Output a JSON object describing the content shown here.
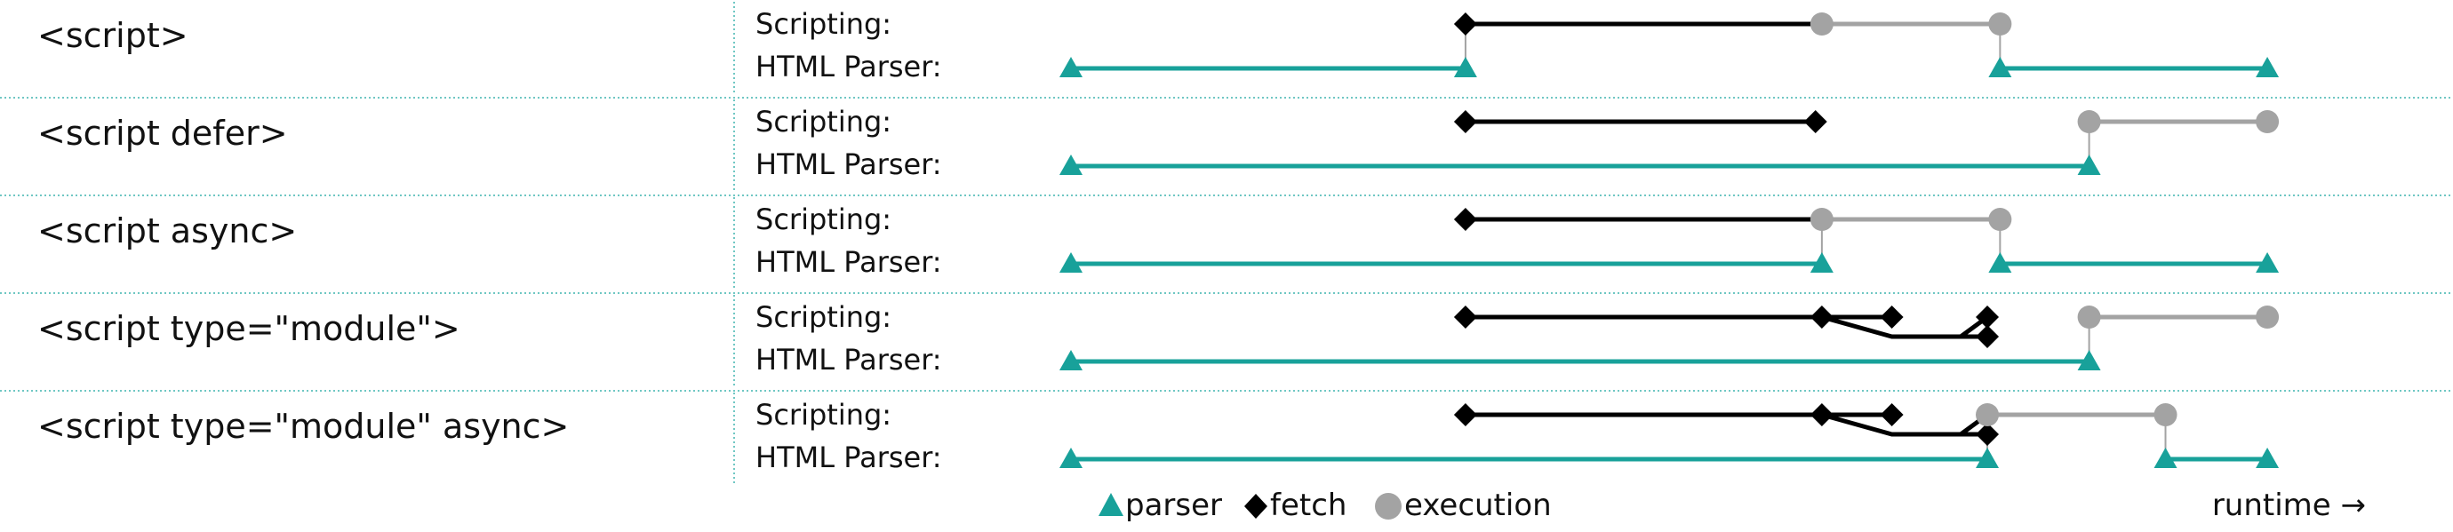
{
  "rows": [
    {
      "title": "<script>",
      "scripting_label": "Scripting:",
      "parser_label": "HTML Parser:",
      "fetch_segments": [
        [
          0.31,
          0.59
        ]
      ],
      "exec_segments": [
        [
          0.59,
          0.73
        ]
      ],
      "parser_segments": [
        [
          0.0,
          0.31
        ],
        [
          0.73,
          0.94
        ]
      ],
      "parser_points": [
        0.0,
        0.31,
        0.73,
        0.94
      ],
      "connectors": [
        0.31,
        0.73
      ],
      "fetch_points": [
        0.31,
        0.59
      ],
      "exec_points": [
        0.59,
        0.73
      ],
      "fetch_kinks": [],
      "extra_fetch_points": []
    },
    {
      "title": "<script defer>",
      "scripting_label": "Scripting:",
      "parser_label": "HTML Parser:",
      "fetch_segments": [
        [
          0.31,
          0.585
        ]
      ],
      "exec_segments": [
        [
          0.8,
          0.94
        ]
      ],
      "parser_segments": [
        [
          0.0,
          0.8
        ]
      ],
      "parser_points": [
        0.0,
        0.8
      ],
      "connectors": [
        0.8
      ],
      "fetch_points": [
        0.31,
        0.585
      ],
      "exec_points": [
        0.8,
        0.94
      ],
      "fetch_kinks": [],
      "extra_fetch_points": []
    },
    {
      "title": "<script async>",
      "scripting_label": "Scripting:",
      "parser_label": "HTML Parser:",
      "fetch_segments": [
        [
          0.31,
          0.59
        ]
      ],
      "exec_segments": [
        [
          0.59,
          0.73
        ]
      ],
      "parser_segments": [
        [
          0.0,
          0.59
        ],
        [
          0.73,
          0.94
        ]
      ],
      "parser_points": [
        0.0,
        0.59,
        0.73,
        0.94
      ],
      "connectors": [
        0.59,
        0.73
      ],
      "fetch_points": [
        0.31,
        0.59
      ],
      "exec_points": [
        0.59,
        0.73
      ],
      "fetch_kinks": [],
      "extra_fetch_points": []
    },
    {
      "title": "<script type=\"module\">",
      "scripting_label": "Scripting:",
      "parser_label": "HTML Parser:",
      "fetch_segments": [
        [
          0.31,
          0.59
        ]
      ],
      "exec_segments": [
        [
          0.8,
          0.94
        ]
      ],
      "parser_segments": [
        [
          0.0,
          0.8
        ]
      ],
      "parser_points": [
        0.0,
        0.8
      ],
      "connectors": [
        0.8
      ],
      "fetch_points": [
        0.31,
        0.59
      ],
      "exec_points": [
        0.8,
        0.94
      ],
      "fetch_kinks": [
        [
          0.59,
          0.645,
          0.72
        ],
        [
          0.59,
          0.645,
          0.72
        ]
      ],
      "extra_fetch_points": [
        0.645,
        0.72
      ]
    },
    {
      "title": "<script type=\"module\" async>",
      "scripting_label": "Scripting:",
      "parser_label": "HTML Parser:",
      "fetch_segments": [
        [
          0.31,
          0.59
        ]
      ],
      "exec_segments": [
        [
          0.72,
          0.86
        ]
      ],
      "parser_segments": [
        [
          0.0,
          0.72
        ],
        [
          0.86,
          0.94
        ]
      ],
      "parser_points": [
        0.0,
        0.72,
        0.86,
        0.94
      ],
      "connectors": [
        0.72,
        0.86
      ],
      "fetch_points": [
        0.31,
        0.59
      ],
      "exec_points": [
        0.72,
        0.86
      ],
      "fetch_kinks": [
        [
          0.59,
          0.645,
          0.72
        ],
        [
          0.59,
          0.645,
          0.72
        ]
      ],
      "extra_fetch_points": [
        0.645,
        0.72
      ]
    }
  ],
  "legend": {
    "parser": "parser",
    "fetch": "fetch",
    "execution": "execution",
    "runtime": "runtime →"
  },
  "colors": {
    "parser": "#18a19a",
    "fetch": "#000000",
    "execution": "#a3a3a3",
    "separator": "#6fc7c3",
    "text": "#111111"
  }
}
